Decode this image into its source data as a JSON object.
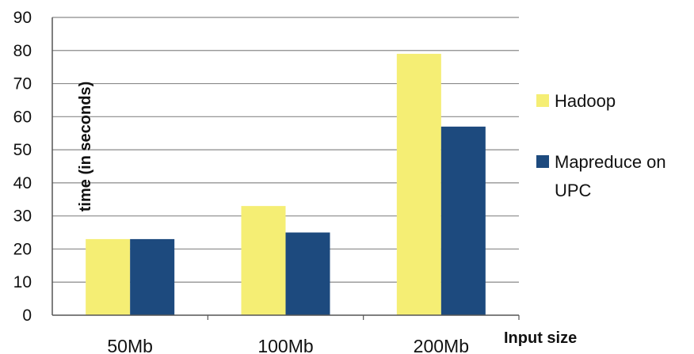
{
  "chart_data": {
    "type": "bar",
    "categories": [
      "50Mb",
      "100Mb",
      "200Mb"
    ],
    "series": [
      {
        "name": "Hadoop",
        "values": [
          23,
          33,
          79
        ]
      },
      {
        "name": "Mapreduce on UPC",
        "values": [
          23,
          25,
          57
        ]
      }
    ],
    "title": "",
    "xlabel": "Input size",
    "ylabel": "time (in seconds)",
    "ylim": [
      0,
      90
    ],
    "yticks": [
      0,
      10,
      20,
      30,
      40,
      50,
      60,
      70,
      80,
      90
    ],
    "grid": true,
    "legend_position": "right",
    "colors": {
      "Hadoop": "#f5ee74",
      "Mapreduce on UPC": "#1d4a7e",
      "grid": "#8a8a8a",
      "axis": "#555555"
    }
  },
  "legend": {
    "items": [
      {
        "lines": [
          "Hadoop"
        ]
      },
      {
        "lines": [
          "Mapreduce on",
          "UPC"
        ]
      }
    ]
  }
}
